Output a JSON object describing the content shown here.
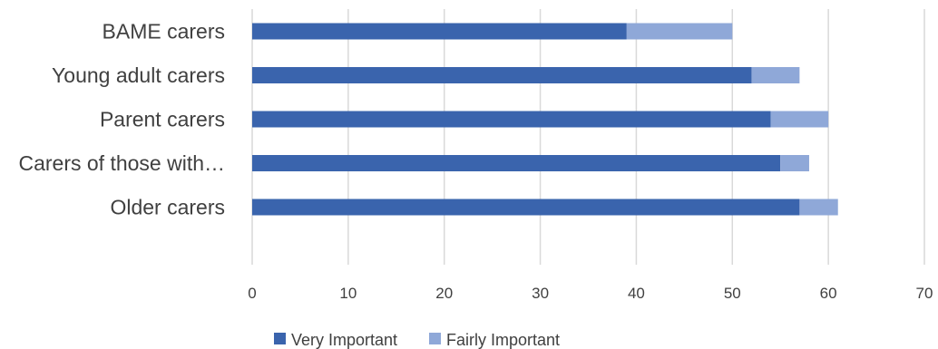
{
  "chart_data": {
    "type": "bar",
    "orientation": "horizontal",
    "stacked": true,
    "categories": [
      "BAME carers",
      "Young adult carers",
      "Parent carers",
      "Carers of those with…",
      "Older carers"
    ],
    "series": [
      {
        "name": "Very Important",
        "values": [
          39,
          52,
          54,
          55,
          57
        ],
        "color": "#3a64ad"
      },
      {
        "name": "Fairly Important",
        "values": [
          11,
          5,
          6,
          3,
          4
        ],
        "color": "#8fa8d8"
      }
    ],
    "xlim": [
      0,
      70
    ],
    "xticks": [
      "0",
      "10",
      "20",
      "30",
      "40",
      "50",
      "60",
      "70"
    ],
    "grid": "vertical",
    "legend": "bottom-center"
  }
}
